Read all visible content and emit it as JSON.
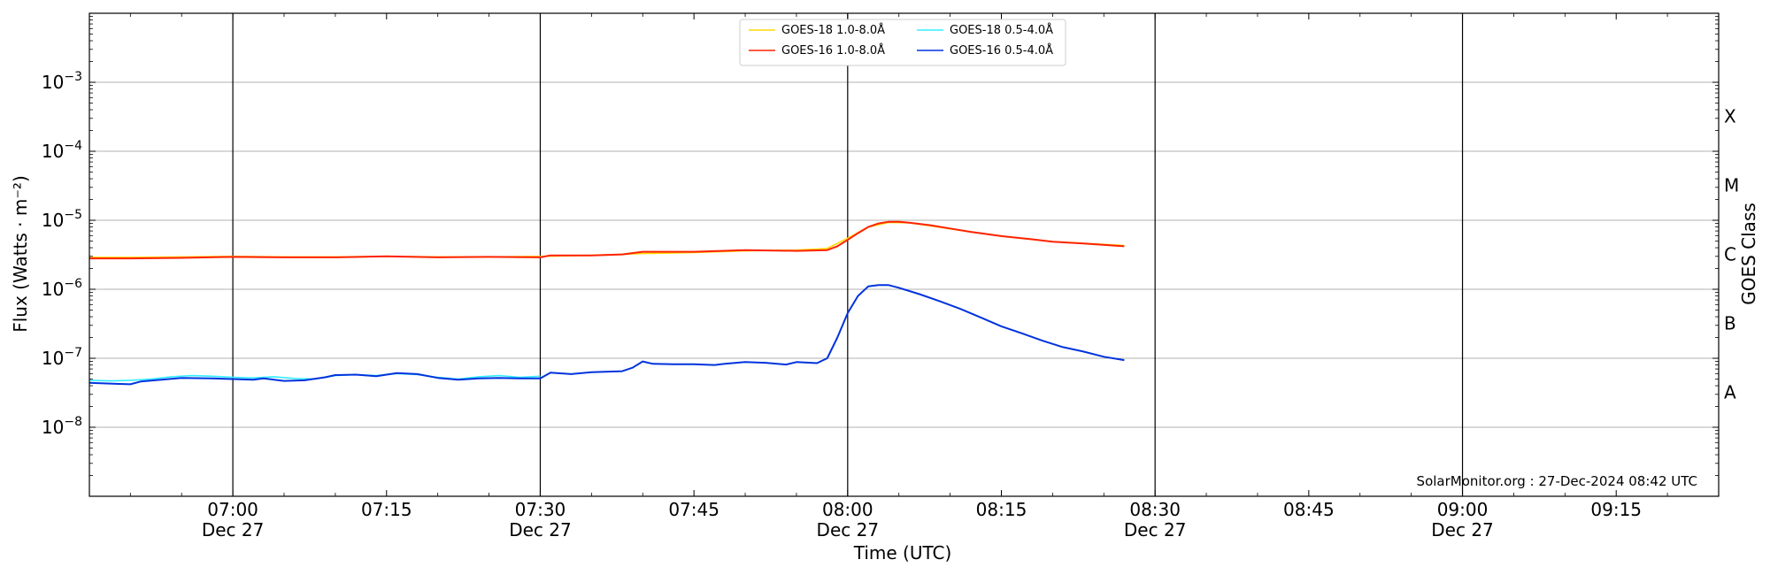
{
  "chart_data": {
    "type": "line",
    "xlabel": "Time (UTC)",
    "ylabel": "Flux (Watts · m⁻²)",
    "y2label": "GOES Class",
    "yscale": "log",
    "xlim": [
      "06:46",
      "09:25"
    ],
    "ylim": [
      1e-09,
      0.01
    ],
    "grid": "horizontal at decades",
    "legend_position": "top-center",
    "credit": "SolarMonitor.org : 27-Dec-2024 08:42 UTC",
    "x_ticks": [
      {
        "time": "07:00",
        "label": "07:00",
        "sublabel": "Dec 27",
        "vline": true
      },
      {
        "time": "07:15",
        "label": "07:15",
        "sublabel": "",
        "vline": false
      },
      {
        "time": "07:30",
        "label": "07:30",
        "sublabel": "Dec 27",
        "vline": true
      },
      {
        "time": "07:45",
        "label": "07:45",
        "sublabel": "",
        "vline": false
      },
      {
        "time": "08:00",
        "label": "08:00",
        "sublabel": "Dec 27",
        "vline": true
      },
      {
        "time": "08:15",
        "label": "08:15",
        "sublabel": "",
        "vline": false
      },
      {
        "time": "08:30",
        "label": "08:30",
        "sublabel": "Dec 27",
        "vline": true
      },
      {
        "time": "08:45",
        "label": "08:45",
        "sublabel": "",
        "vline": false
      },
      {
        "time": "09:00",
        "label": "09:00",
        "sublabel": "Dec 27",
        "vline": true
      },
      {
        "time": "09:15",
        "label": "09:15",
        "sublabel": "",
        "vline": false
      }
    ],
    "y_ticks": [
      {
        "value": 1e-08,
        "mant": "10",
        "exp": "−8"
      },
      {
        "value": 1e-07,
        "mant": "10",
        "exp": "−7"
      },
      {
        "value": 1e-06,
        "mant": "10",
        "exp": "−6"
      },
      {
        "value": 1e-05,
        "mant": "10",
        "exp": "−5"
      },
      {
        "value": 0.0001,
        "mant": "10",
        "exp": "−4"
      },
      {
        "value": 0.001,
        "mant": "10",
        "exp": "−3"
      }
    ],
    "goes_classes": [
      {
        "label": "A",
        "value": 3.2e-08
      },
      {
        "label": "B",
        "value": 3.2e-07
      },
      {
        "label": "C",
        "value": 3.2e-06
      },
      {
        "label": "M",
        "value": 3.2e-05
      },
      {
        "label": "X",
        "value": 0.00032
      }
    ],
    "legend": [
      {
        "name": "GOES-18 1.0-8.0Å",
        "color": "#ffd700"
      },
      {
        "name": "GOES-16 1.0-8.0Å",
        "color": "#ff2200"
      },
      {
        "name": "GOES-18 0.5-4.0Å",
        "color": "#33eeff"
      },
      {
        "name": "GOES-16 0.5-4.0Å",
        "color": "#0033dd"
      }
    ],
    "series": [
      {
        "name": "GOES-18 1.0-8.0Å",
        "color": "#ffd700",
        "width": 1.6,
        "points": [
          [
            "06:46",
            2.9e-06
          ],
          [
            "06:50",
            2.9e-06
          ],
          [
            "06:55",
            2.95e-06
          ],
          [
            "07:00",
            3e-06
          ],
          [
            "07:05",
            2.95e-06
          ],
          [
            "07:10",
            2.95e-06
          ],
          [
            "07:15",
            3e-06
          ],
          [
            "07:20",
            2.95e-06
          ],
          [
            "07:25",
            2.95e-06
          ],
          [
            "07:30",
            3e-06
          ],
          [
            "07:35",
            3.1e-06
          ],
          [
            "07:40",
            3.3e-06
          ],
          [
            "07:45",
            3.4e-06
          ],
          [
            "07:50",
            3.6e-06
          ],
          [
            "07:55",
            3.7e-06
          ],
          [
            "07:58",
            3.9e-06
          ],
          [
            "08:00",
            5.5e-06
          ],
          [
            "08:02",
            8e-06
          ],
          [
            "08:04",
            9.3e-06
          ],
          [
            "08:06",
            9.2e-06
          ],
          [
            "08:10",
            7.5e-06
          ],
          [
            "08:15",
            5.9e-06
          ],
          [
            "08:20",
            4.9e-06
          ],
          [
            "08:27",
            4.3e-06
          ]
        ]
      },
      {
        "name": "GOES-16 1.0-8.0Å",
        "color": "#ff2200",
        "width": 2.0,
        "points": [
          [
            "06:46",
            2.8e-06
          ],
          [
            "06:50",
            2.8e-06
          ],
          [
            "06:55",
            2.85e-06
          ],
          [
            "07:00",
            2.95e-06
          ],
          [
            "07:05",
            2.9e-06
          ],
          [
            "07:10",
            2.9e-06
          ],
          [
            "07:15",
            3e-06
          ],
          [
            "07:20",
            2.9e-06
          ],
          [
            "07:25",
            2.95e-06
          ],
          [
            "07:30",
            2.9e-06
          ],
          [
            "07:31",
            3.1e-06
          ],
          [
            "07:35",
            3.1e-06
          ],
          [
            "07:38",
            3.2e-06
          ],
          [
            "07:40",
            3.5e-06
          ],
          [
            "07:45",
            3.5e-06
          ],
          [
            "07:50",
            3.7e-06
          ],
          [
            "07:55",
            3.6e-06
          ],
          [
            "07:58",
            3.7e-06
          ],
          [
            "07:59",
            4.2e-06
          ],
          [
            "08:00",
            5.2e-06
          ],
          [
            "08:01",
            6.5e-06
          ],
          [
            "08:02",
            8e-06
          ],
          [
            "08:03",
            9e-06
          ],
          [
            "08:04",
            9.5e-06
          ],
          [
            "08:05",
            9.5e-06
          ],
          [
            "08:06",
            9.2e-06
          ],
          [
            "08:08",
            8.5e-06
          ],
          [
            "08:10",
            7.6e-06
          ],
          [
            "08:12",
            6.8e-06
          ],
          [
            "08:15",
            5.9e-06
          ],
          [
            "08:18",
            5.3e-06
          ],
          [
            "08:20",
            4.9e-06
          ],
          [
            "08:23",
            4.6e-06
          ],
          [
            "08:27",
            4.2e-06
          ]
        ]
      },
      {
        "name": "GOES-18 0.5-4.0Å",
        "color": "#33eeff",
        "width": 1.6,
        "points": [
          [
            "06:46",
            4.8e-08
          ],
          [
            "06:48",
            4.7e-08
          ],
          [
            "06:50",
            4.8e-08
          ],
          [
            "06:52",
            5e-08
          ],
          [
            "06:54",
            5.4e-08
          ],
          [
            "06:56",
            5.6e-08
          ],
          [
            "06:58",
            5.5e-08
          ],
          [
            "07:00",
            5.3e-08
          ],
          [
            "07:02",
            5.2e-08
          ],
          [
            "07:04",
            5.4e-08
          ],
          [
            "07:06",
            5.1e-08
          ],
          [
            "07:08",
            5e-08
          ],
          [
            "07:10",
            5.6e-08
          ],
          [
            "07:12",
            5.8e-08
          ],
          [
            "07:14",
            5.6e-08
          ],
          [
            "07:16",
            6e-08
          ],
          [
            "07:18",
            5.8e-08
          ],
          [
            "07:20",
            5.3e-08
          ],
          [
            "07:22",
            5e-08
          ],
          [
            "07:24",
            5.4e-08
          ],
          [
            "07:26",
            5.6e-08
          ],
          [
            "07:28",
            5.3e-08
          ],
          [
            "07:30",
            5.5e-08
          ]
        ]
      },
      {
        "name": "GOES-16 0.5-4.0Å",
        "color": "#0033dd",
        "width": 2.0,
        "points": [
          [
            "06:46",
            4.4e-08
          ],
          [
            "06:48",
            4.3e-08
          ],
          [
            "06:50",
            4.2e-08
          ],
          [
            "06:51",
            4.6e-08
          ],
          [
            "06:53",
            4.9e-08
          ],
          [
            "06:55",
            5.2e-08
          ],
          [
            "06:58",
            5.1e-08
          ],
          [
            "07:00",
            5e-08
          ],
          [
            "07:02",
            4.9e-08
          ],
          [
            "07:03",
            5.1e-08
          ],
          [
            "07:05",
            4.7e-08
          ],
          [
            "07:07",
            4.8e-08
          ],
          [
            "07:09",
            5.3e-08
          ],
          [
            "07:10",
            5.7e-08
          ],
          [
            "07:12",
            5.8e-08
          ],
          [
            "07:14",
            5.5e-08
          ],
          [
            "07:16",
            6.1e-08
          ],
          [
            "07:18",
            5.9e-08
          ],
          [
            "07:20",
            5.2e-08
          ],
          [
            "07:22",
            4.9e-08
          ],
          [
            "07:24",
            5.1e-08
          ],
          [
            "07:26",
            5.2e-08
          ],
          [
            "07:28",
            5.1e-08
          ],
          [
            "07:30",
            5.1e-08
          ],
          [
            "07:31",
            6.2e-08
          ],
          [
            "07:33",
            5.9e-08
          ],
          [
            "07:35",
            6.3e-08
          ],
          [
            "07:38",
            6.5e-08
          ],
          [
            "07:39",
            7.3e-08
          ],
          [
            "07:40",
            9e-08
          ],
          [
            "07:41",
            8.3e-08
          ],
          [
            "07:43",
            8.2e-08
          ],
          [
            "07:45",
            8.2e-08
          ],
          [
            "07:47",
            8e-08
          ],
          [
            "07:48",
            8.3e-08
          ],
          [
            "07:50",
            8.8e-08
          ],
          [
            "07:52",
            8.6e-08
          ],
          [
            "07:54",
            8.1e-08
          ],
          [
            "07:55",
            8.8e-08
          ],
          [
            "07:57",
            8.5e-08
          ],
          [
            "07:58",
            1e-07
          ],
          [
            "07:59",
            2e-07
          ],
          [
            "08:00",
            4.5e-07
          ],
          [
            "08:01",
            8e-07
          ],
          [
            "08:02",
            1.1e-06
          ],
          [
            "08:03",
            1.15e-06
          ],
          [
            "08:04",
            1.15e-06
          ],
          [
            "08:05",
            1.05e-06
          ],
          [
            "08:07",
            8.5e-07
          ],
          [
            "08:09",
            6.7e-07
          ],
          [
            "08:11",
            5.2e-07
          ],
          [
            "08:13",
            3.9e-07
          ],
          [
            "08:15",
            2.9e-07
          ],
          [
            "08:17",
            2.3e-07
          ],
          [
            "08:19",
            1.8e-07
          ],
          [
            "08:21",
            1.45e-07
          ],
          [
            "08:23",
            1.25e-07
          ],
          [
            "08:25",
            1.05e-07
          ],
          [
            "08:27",
            9.4e-08
          ]
        ]
      }
    ]
  }
}
